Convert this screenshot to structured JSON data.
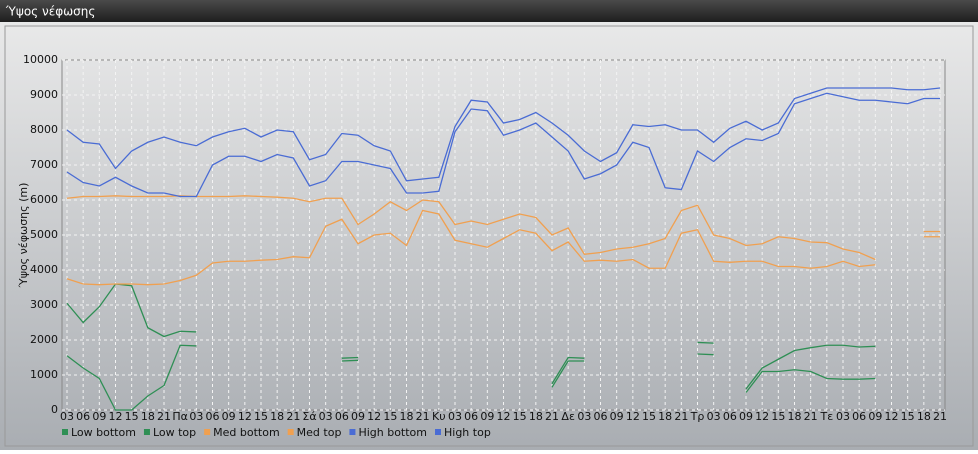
{
  "window_title": "Ύψος νέφωσης",
  "chart_data": {
    "type": "line",
    "ylabel": "Ύψος νέφωσης (m)",
    "categories": [
      "03",
      "06",
      "09",
      "12",
      "15",
      "18",
      "21",
      "Πα",
      "03",
      "06",
      "09",
      "12",
      "15",
      "18",
      "21",
      "Σά",
      "03",
      "06",
      "09",
      "12",
      "15",
      "18",
      "21",
      "Κυ",
      "03",
      "06",
      "09",
      "12",
      "15",
      "18",
      "21",
      "Δε",
      "03",
      "06",
      "09",
      "12",
      "15",
      "18",
      "21",
      "Τρ",
      "03",
      "06",
      "09",
      "12",
      "15",
      "18",
      "21",
      "Τε",
      "03",
      "06",
      "09",
      "12",
      "15",
      "18",
      "21"
    ],
    "ylim": [
      0,
      10000
    ],
    "yticks": [
      0,
      1000,
      2000,
      3000,
      4000,
      5000,
      6000,
      7000,
      8000,
      9000,
      10000
    ],
    "grid": true,
    "series": [
      {
        "name": "Low bottom",
        "color": "#2f8f55",
        "values": [
          1550,
          1200,
          900,
          0,
          0,
          400,
          700,
          1850,
          1830,
          null,
          null,
          null,
          null,
          null,
          null,
          null,
          null,
          1400,
          1420,
          null,
          null,
          null,
          null,
          null,
          null,
          null,
          null,
          null,
          null,
          null,
          650,
          1400,
          1400,
          null,
          null,
          null,
          null,
          null,
          null,
          1600,
          1580,
          null,
          500,
          1100,
          1100,
          1150,
          1100,
          900,
          880,
          880,
          900,
          null,
          null,
          null,
          null
        ]
      },
      {
        "name": "Low top",
        "color": "#2f8f55",
        "values": [
          3050,
          2500,
          2950,
          3600,
          3550,
          2350,
          2100,
          2250,
          2230,
          null,
          null,
          null,
          null,
          null,
          null,
          null,
          null,
          1480,
          1500,
          null,
          null,
          null,
          null,
          null,
          null,
          null,
          null,
          null,
          null,
          null,
          750,
          1500,
          1480,
          null,
          null,
          null,
          null,
          null,
          null,
          1930,
          1910,
          null,
          600,
          1200,
          1450,
          1700,
          1780,
          1850,
          1850,
          1800,
          1820,
          null,
          null,
          null,
          null
        ]
      },
      {
        "name": "Med bottom",
        "color": "#f0a050",
        "values": [
          3750,
          3600,
          3580,
          3600,
          3600,
          3580,
          3600,
          3700,
          3850,
          4200,
          4250,
          4250,
          4280,
          4300,
          4380,
          4350,
          5250,
          5450,
          4750,
          5000,
          5050,
          4700,
          5700,
          5600,
          4850,
          4750,
          4650,
          4900,
          5150,
          5050,
          4550,
          4800,
          4250,
          4280,
          4250,
          4300,
          4050,
          4050,
          5050,
          5150,
          4250,
          4220,
          4250,
          4250,
          4100,
          4100,
          4050,
          4100,
          4250,
          4100,
          4150,
          null,
          null,
          4950,
          4950
        ]
      },
      {
        "name": "Med top",
        "color": "#f0a050",
        "values": [
          6050,
          6100,
          6100,
          6120,
          6100,
          6100,
          6100,
          6120,
          6100,
          6100,
          6100,
          6120,
          6100,
          6080,
          6050,
          5950,
          6050,
          6050,
          5300,
          5600,
          5950,
          5700,
          6000,
          5950,
          5300,
          5400,
          5300,
          5450,
          5600,
          5500,
          5000,
          5200,
          4450,
          4500,
          4600,
          4650,
          4750,
          4900,
          5700,
          5850,
          5000,
          4900,
          4700,
          4750,
          4950,
          4900,
          4800,
          4780,
          4600,
          4500,
          4300,
          null,
          null,
          5100,
          5100
        ]
      },
      {
        "name": "High bottom",
        "color": "#4a6cd4",
        "values": [
          6800,
          6500,
          6400,
          6650,
          6400,
          6200,
          6200,
          6100,
          6100,
          7000,
          7250,
          7250,
          7100,
          7300,
          7200,
          6400,
          6550,
          7100,
          7100,
          7000,
          6900,
          6200,
          6200,
          6250,
          7950,
          8600,
          8550,
          7850,
          8000,
          8200,
          7800,
          7400,
          6600,
          6750,
          7000,
          7650,
          7500,
          6350,
          6300,
          7400,
          7100,
          7500,
          7750,
          7700,
          7900,
          8750,
          8900,
          9050,
          8950,
          8850,
          8850,
          8800,
          8750,
          8900,
          8900
        ]
      },
      {
        "name": "High top",
        "color": "#4a6cd4",
        "values": [
          8000,
          7650,
          7600,
          6900,
          7400,
          7650,
          7800,
          7650,
          7550,
          7800,
          7950,
          8050,
          7800,
          8000,
          7950,
          7150,
          7300,
          7900,
          7850,
          7550,
          7400,
          6550,
          6600,
          6650,
          8100,
          8850,
          8800,
          8200,
          8300,
          8500,
          8200,
          7850,
          7400,
          7100,
          7350,
          8150,
          8100,
          8150,
          8000,
          8000,
          7650,
          8050,
          8250,
          8000,
          8200,
          8900,
          9050,
          9200,
          9200,
          9200,
          9200,
          9200,
          9150,
          9150,
          9200
        ]
      }
    ]
  }
}
